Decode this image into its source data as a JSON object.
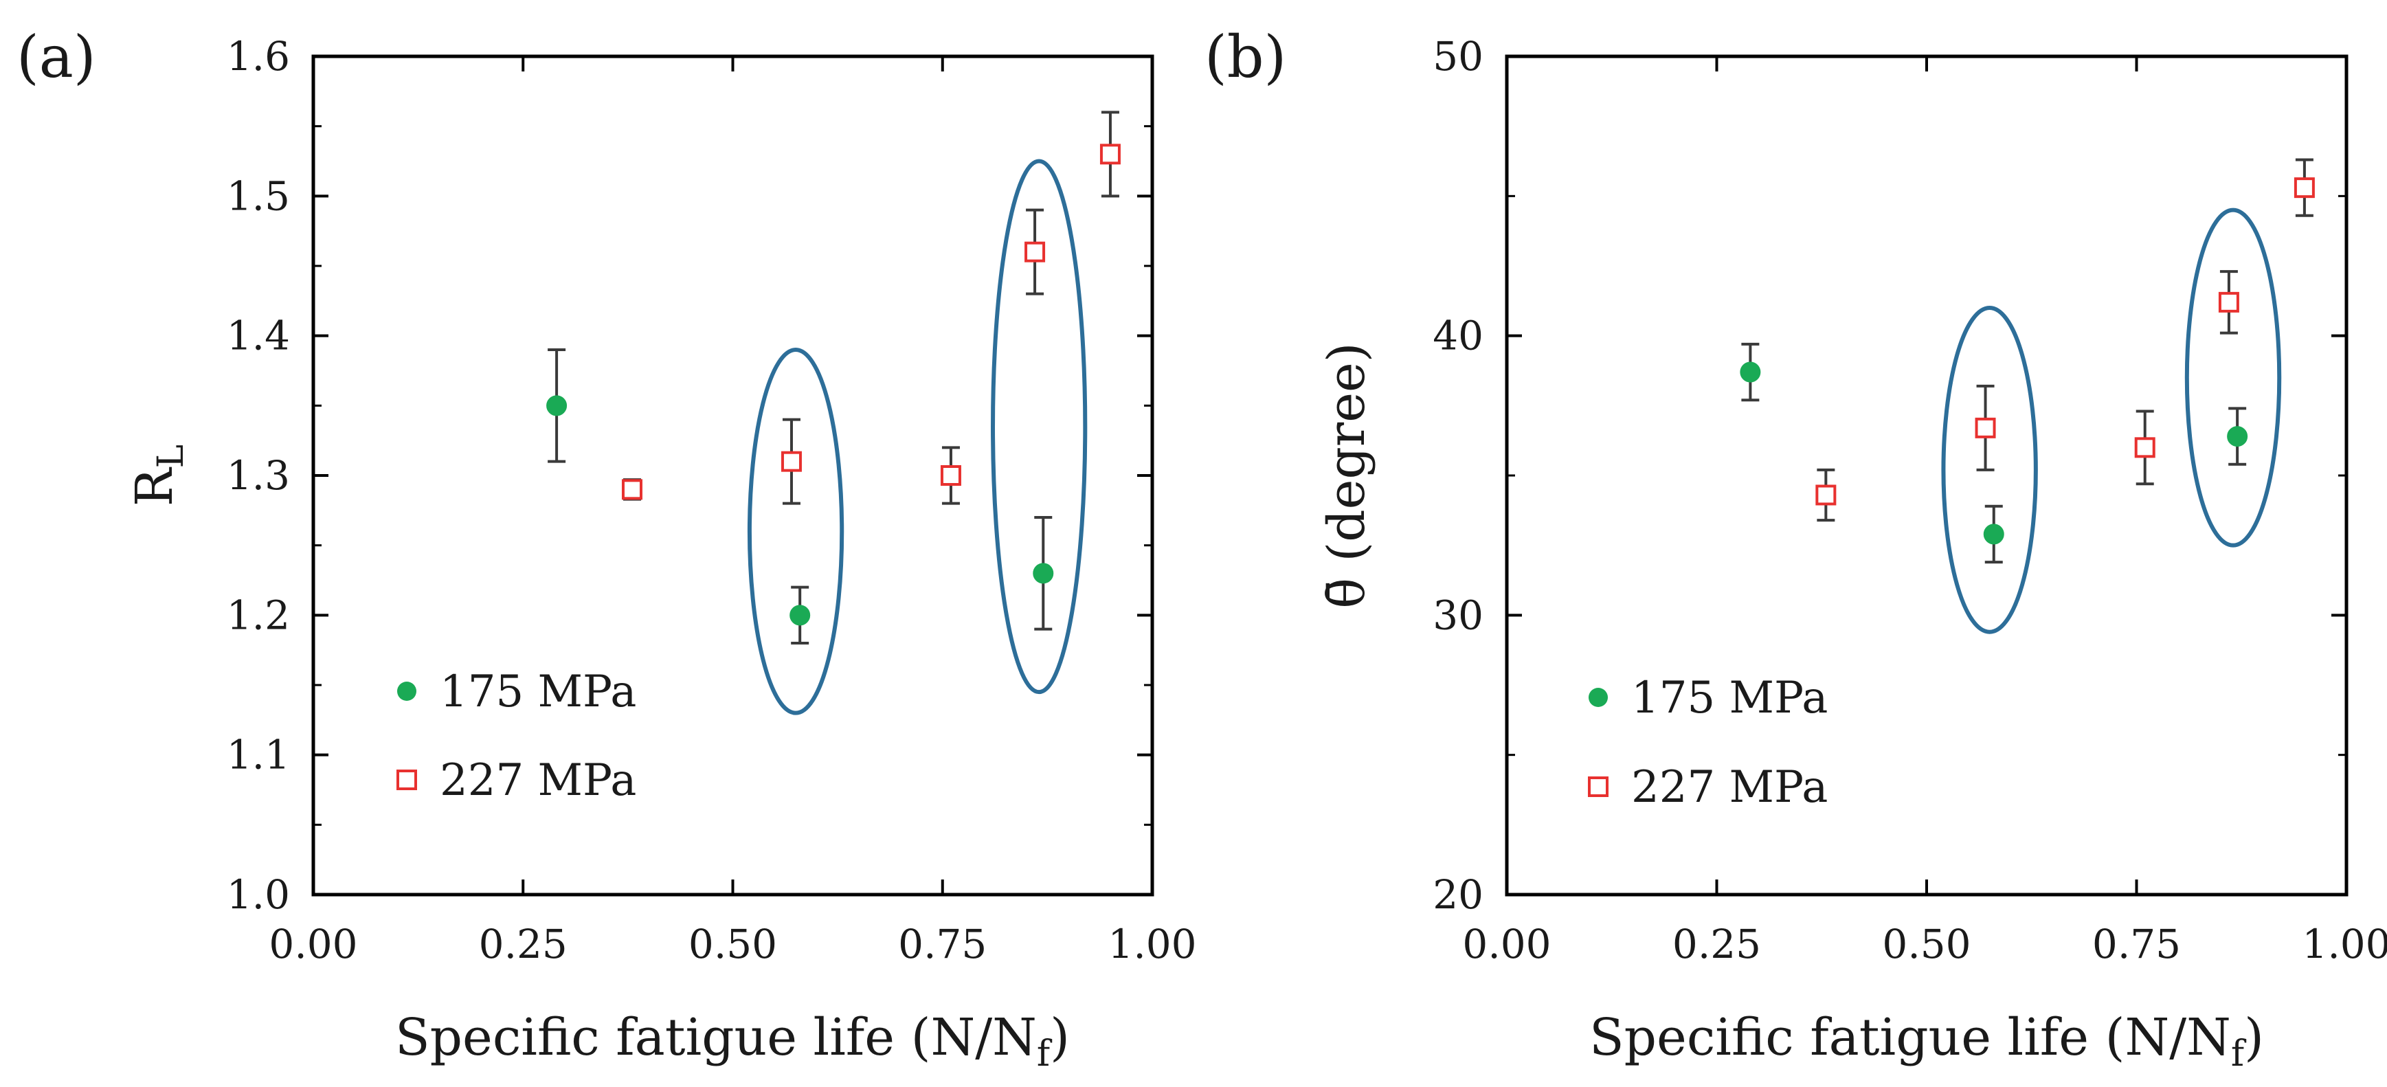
{
  "chart_data": [
    {
      "type": "scatter",
      "panel_label": "(a)",
      "xlabel": "Specific fatigue life (N/N",
      "xlabel_sub": "f",
      "xlabel_close": ")",
      "ylabel": "R",
      "ylabel_sub": "L",
      "xlim": [
        0,
        1
      ],
      "ylim": [
        1.0,
        1.6
      ],
      "x_ticks": [
        "0.00",
        "0.25",
        "0.50",
        "0.75",
        "1.00"
      ],
      "y_ticks": [
        "1.0",
        "1.1",
        "1.2",
        "1.3",
        "1.4",
        "1.5",
        "1.6"
      ],
      "grid": false,
      "legend_position": "bottom-left",
      "series": [
        {
          "name": "175 MPa",
          "marker": "filled-circle",
          "color": "#1aaa55",
          "points": [
            {
              "x": 0.29,
              "y": 1.35,
              "err": 0.04
            },
            {
              "x": 0.58,
              "y": 1.2,
              "err": 0.02
            },
            {
              "x": 0.87,
              "y": 1.23,
              "err": 0.04
            }
          ]
        },
        {
          "name": "227 MPa",
          "marker": "open-square",
          "color": "#e8312f",
          "points": [
            {
              "x": 0.38,
              "y": 1.29,
              "err": 0.007
            },
            {
              "x": 0.57,
              "y": 1.31,
              "err": 0.03
            },
            {
              "x": 0.76,
              "y": 1.3,
              "err": 0.02
            },
            {
              "x": 0.86,
              "y": 1.46,
              "err": 0.03
            },
            {
              "x": 0.95,
              "y": 1.53,
              "err": 0.03
            }
          ]
        }
      ],
      "highlights": [
        {
          "x_center": 0.575,
          "y_center": 1.26,
          "x_radius": 0.055,
          "y_radius": 0.13
        },
        {
          "x_center": 0.865,
          "y_center": 1.335,
          "x_radius": 0.055,
          "y_radius": 0.19
        }
      ]
    },
    {
      "type": "scatter",
      "panel_label": "(b)",
      "xlabel": "Specific fatigue life (N/N",
      "xlabel_sub": "f",
      "xlabel_close": ")",
      "ylabel": "θ̄ (degree)",
      "xlim": [
        0,
        1
      ],
      "ylim": [
        20,
        50
      ],
      "x_ticks": [
        "0.00",
        "0.25",
        "0.50",
        "0.75",
        "1.00"
      ],
      "y_ticks": [
        "20",
        "30",
        "40",
        "50"
      ],
      "grid": false,
      "legend_position": "bottom-left",
      "series": [
        {
          "name": "175 MPa",
          "marker": "filled-circle",
          "color": "#1aaa55",
          "points": [
            {
              "x": 0.29,
              "y": 38.7,
              "err": 1.0
            },
            {
              "x": 0.58,
              "y": 32.9,
              "err": 1.0
            },
            {
              "x": 0.87,
              "y": 36.4,
              "err": 1.0
            }
          ]
        },
        {
          "name": "227 MPa",
          "marker": "open-square",
          "color": "#e8312f",
          "points": [
            {
              "x": 0.38,
              "y": 34.3,
              "err": 0.9
            },
            {
              "x": 0.57,
              "y": 36.7,
              "err": 1.5
            },
            {
              "x": 0.76,
              "y": 36.0,
              "err": 1.3
            },
            {
              "x": 0.86,
              "y": 41.2,
              "err": 1.1
            },
            {
              "x": 0.95,
              "y": 45.3,
              "err": 1.0
            }
          ]
        }
      ],
      "highlights": [
        {
          "x_center": 0.575,
          "y_center": 35.2,
          "x_radius": 0.055,
          "y_radius": 5.8
        },
        {
          "x_center": 0.865,
          "y_center": 38.5,
          "x_radius": 0.055,
          "y_radius": 6.0
        }
      ]
    }
  ]
}
